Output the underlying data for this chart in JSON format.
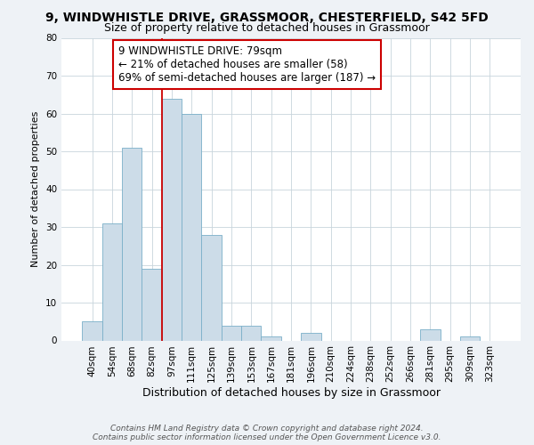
{
  "title": "9, WINDWHISTLE DRIVE, GRASSMOOR, CHESTERFIELD, S42 5FD",
  "subtitle": "Size of property relative to detached houses in Grassmoor",
  "xlabel": "Distribution of detached houses by size in Grassmoor",
  "ylabel": "Number of detached properties",
  "bin_labels": [
    "40sqm",
    "54sqm",
    "68sqm",
    "82sqm",
    "97sqm",
    "111sqm",
    "125sqm",
    "139sqm",
    "153sqm",
    "167sqm",
    "181sqm",
    "196sqm",
    "210sqm",
    "224sqm",
    "238sqm",
    "252sqm",
    "266sqm",
    "281sqm",
    "295sqm",
    "309sqm",
    "323sqm"
  ],
  "bar_values": [
    5,
    31,
    51,
    19,
    64,
    60,
    28,
    4,
    4,
    1,
    0,
    2,
    0,
    0,
    0,
    0,
    0,
    3,
    0,
    1,
    0
  ],
  "bar_color": "#ccdce8",
  "bar_edgecolor": "#7aafc8",
  "vline_x_index": 3.5,
  "vline_color": "#cc0000",
  "annotation_text": "9 WINDWHISTLE DRIVE: 79sqm\n← 21% of detached houses are smaller (58)\n69% of semi-detached houses are larger (187) →",
  "annotation_box_edgecolor": "#cc0000",
  "annotation_box_facecolor": "#ffffff",
  "ylim": [
    0,
    80
  ],
  "yticks": [
    0,
    10,
    20,
    30,
    40,
    50,
    60,
    70,
    80
  ],
  "footer_text": "Contains HM Land Registry data © Crown copyright and database right 2024.\nContains public sector information licensed under the Open Government Licence v3.0.",
  "title_fontsize": 10,
  "subtitle_fontsize": 9,
  "xlabel_fontsize": 9,
  "ylabel_fontsize": 8,
  "tick_fontsize": 7.5,
  "annotation_fontsize": 8.5,
  "footer_fontsize": 6.5,
  "bg_color": "#eef2f6",
  "plot_bg_color": "#ffffff",
  "grid_color": "#c8d4dc"
}
